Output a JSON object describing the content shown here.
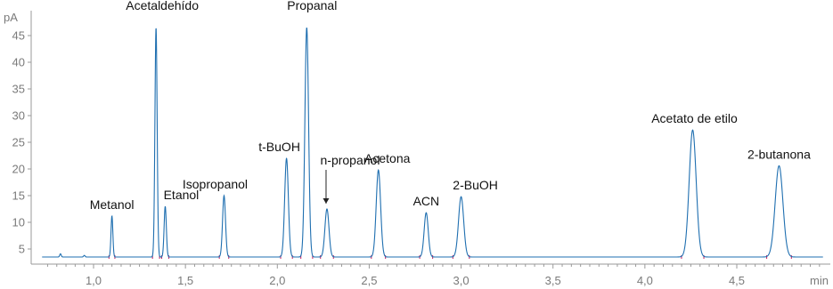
{
  "chart_data": {
    "type": "line",
    "xlabel": "min",
    "ylabel": "pA",
    "xlim": [
      0.7,
      5.0
    ],
    "ylim": [
      3,
      48
    ],
    "x_ticks": [
      1.0,
      1.5,
      2.0,
      2.5,
      3.0,
      3.5,
      4.0,
      4.5
    ],
    "x_tick_labels": [
      "1,0",
      "1,5",
      "2,0",
      "2,5",
      "3,0",
      "3,5",
      "4,0",
      "4,5"
    ],
    "y_ticks": [
      5,
      10,
      15,
      20,
      25,
      30,
      35,
      40,
      45
    ],
    "y_tick_labels": [
      "5",
      "10",
      "15",
      "20",
      "25",
      "30",
      "35",
      "40",
      "45"
    ],
    "baseline": 3.5,
    "grid": false,
    "line_color": "#1f6fb0",
    "baseline_marker_color": "#c2185b",
    "peaks": [
      {
        "label": "",
        "rt": 0.82,
        "height": 4.1,
        "width": 0.004
      },
      {
        "label": "",
        "rt": 0.95,
        "height": 3.8,
        "width": 0.004
      },
      {
        "label": "Metanol",
        "rt": 1.1,
        "height": 11.2,
        "width": 0.005
      },
      {
        "label": "Acetaldehído",
        "rt": 1.34,
        "height": 46.5,
        "width": 0.006
      },
      {
        "label": "Etanol",
        "rt": 1.39,
        "height": 13.0,
        "width": 0.006
      },
      {
        "label": "Isopropanol",
        "rt": 1.71,
        "height": 15.0,
        "width": 0.008
      },
      {
        "label": "t-BuOH",
        "rt": 2.05,
        "height": 22.0,
        "width": 0.01
      },
      {
        "label": "Propanal",
        "rt": 2.16,
        "height": 46.5,
        "width": 0.01
      },
      {
        "label": "n-propanol",
        "rt": 2.27,
        "height": 12.5,
        "width": 0.011
      },
      {
        "label": "Acetona",
        "rt": 2.55,
        "height": 19.8,
        "width": 0.012
      },
      {
        "label": "ACN",
        "rt": 2.81,
        "height": 11.8,
        "width": 0.011
      },
      {
        "label": "2-BuOH",
        "rt": 3.0,
        "height": 14.8,
        "width": 0.014
      },
      {
        "label": "Acetato de etilo",
        "rt": 4.26,
        "height": 27.3,
        "width": 0.019
      },
      {
        "label": "2-butanona",
        "rt": 4.73,
        "height": 20.6,
        "width": 0.021
      }
    ]
  }
}
